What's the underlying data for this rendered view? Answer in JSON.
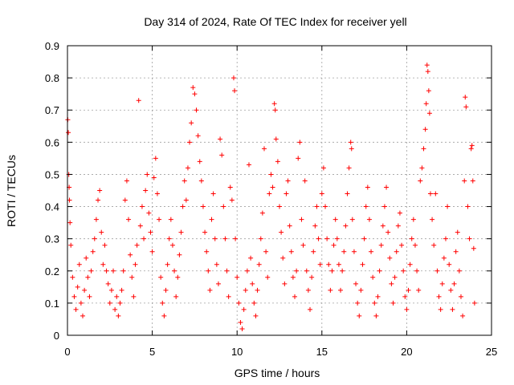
{
  "chart_data": {
    "type": "scatter",
    "title": "Day 314 of 2024, Rate Of TEC Index for receiver yell",
    "xlabel": "GPS time / hours",
    "ylabel": "ROTI / TECUs",
    "xlim": [
      0,
      25
    ],
    "ylim": [
      0,
      0.9
    ],
    "xticks": [
      0,
      5,
      10,
      15,
      20,
      25
    ],
    "yticks": [
      0,
      0.1,
      0.2,
      0.3,
      0.4,
      0.5,
      0.6,
      0.7,
      0.8,
      0.9
    ],
    "xtick_labels": [
      "0",
      "5",
      "10",
      "15",
      "20",
      "25"
    ],
    "ytick_labels": [
      "0",
      "0.1",
      "0.2",
      "0.3",
      "0.4",
      "0.5",
      "0.6",
      "0.7",
      "0.8",
      "0.9"
    ],
    "grid": true,
    "marker": "+",
    "marker_color": "#ff0000",
    "series": [
      {
        "name": "ROTI",
        "points": [
          [
            0.02,
            0.67
          ],
          [
            0.05,
            0.63
          ],
          [
            0.08,
            0.5
          ],
          [
            0.1,
            0.46
          ],
          [
            0.12,
            0.42
          ],
          [
            0.15,
            0.35
          ],
          [
            0.2,
            0.28
          ],
          [
            0.3,
            0.18
          ],
          [
            0.4,
            0.12
          ],
          [
            0.5,
            0.08
          ],
          [
            0.6,
            0.15
          ],
          [
            0.7,
            0.22
          ],
          [
            0.8,
            0.1
          ],
          [
            0.9,
            0.06
          ],
          [
            1.0,
            0.14
          ],
          [
            1.1,
            0.24
          ],
          [
            1.2,
            0.18
          ],
          [
            1.3,
            0.12
          ],
          [
            1.4,
            0.2
          ],
          [
            1.5,
            0.26
          ],
          [
            1.6,
            0.3
          ],
          [
            1.7,
            0.36
          ],
          [
            1.8,
            0.42
          ],
          [
            1.9,
            0.45
          ],
          [
            2.0,
            0.32
          ],
          [
            2.1,
            0.22
          ],
          [
            2.2,
            0.28
          ],
          [
            2.3,
            0.2
          ],
          [
            2.4,
            0.16
          ],
          [
            2.5,
            0.1
          ],
          [
            2.6,
            0.14
          ],
          [
            2.7,
            0.2
          ],
          [
            2.8,
            0.08
          ],
          [
            2.9,
            0.12
          ],
          [
            3.0,
            0.06
          ],
          [
            3.1,
            0.1
          ],
          [
            3.2,
            0.14
          ],
          [
            3.3,
            0.2
          ],
          [
            3.4,
            0.42
          ],
          [
            3.5,
            0.48
          ],
          [
            3.6,
            0.36
          ],
          [
            3.7,
            0.25
          ],
          [
            3.8,
            0.18
          ],
          [
            3.9,
            0.12
          ],
          [
            4.0,
            0.22
          ],
          [
            4.1,
            0.28
          ],
          [
            4.2,
            0.73
          ],
          [
            4.3,
            0.34
          ],
          [
            4.4,
            0.4
          ],
          [
            4.5,
            0.3
          ],
          [
            4.6,
            0.45
          ],
          [
            4.7,
            0.5
          ],
          [
            4.8,
            0.38
          ],
          [
            4.9,
            0.32
          ],
          [
            5.0,
            0.26
          ],
          [
            5.1,
            0.49
          ],
          [
            5.2,
            0.55
          ],
          [
            5.3,
            0.44
          ],
          [
            5.4,
            0.36
          ],
          [
            5.5,
            0.18
          ],
          [
            5.6,
            0.1
          ],
          [
            5.7,
            0.06
          ],
          [
            5.8,
            0.14
          ],
          [
            5.9,
            0.22
          ],
          [
            6.0,
            0.3
          ],
          [
            6.1,
            0.36
          ],
          [
            6.2,
            0.28
          ],
          [
            6.3,
            0.2
          ],
          [
            6.4,
            0.12
          ],
          [
            6.5,
            0.18
          ],
          [
            6.6,
            0.25
          ],
          [
            6.7,
            0.32
          ],
          [
            6.8,
            0.4
          ],
          [
            6.9,
            0.48
          ],
          [
            7.0,
            0.42
          ],
          [
            7.1,
            0.52
          ],
          [
            7.2,
            0.6
          ],
          [
            7.3,
            0.66
          ],
          [
            7.4,
            0.77
          ],
          [
            7.5,
            0.75
          ],
          [
            7.6,
            0.7
          ],
          [
            7.7,
            0.62
          ],
          [
            7.8,
            0.54
          ],
          [
            7.9,
            0.48
          ],
          [
            8.0,
            0.4
          ],
          [
            8.1,
            0.32
          ],
          [
            8.2,
            0.26
          ],
          [
            8.3,
            0.2
          ],
          [
            8.4,
            0.14
          ],
          [
            8.5,
            0.36
          ],
          [
            8.6,
            0.44
          ],
          [
            8.7,
            0.3
          ],
          [
            8.8,
            0.22
          ],
          [
            8.9,
            0.16
          ],
          [
            9.0,
            0.61
          ],
          [
            9.1,
            0.56
          ],
          [
            9.2,
            0.4
          ],
          [
            9.3,
            0.3
          ],
          [
            9.4,
            0.2
          ],
          [
            9.5,
            0.12
          ],
          [
            9.6,
            0.46
          ],
          [
            9.7,
            0.42
          ],
          [
            9.8,
            0.8
          ],
          [
            9.85,
            0.76
          ],
          [
            9.9,
            0.3
          ],
          [
            10.0,
            0.18
          ],
          [
            10.1,
            0.1
          ],
          [
            10.2,
            0.04
          ],
          [
            10.3,
            0.02
          ],
          [
            10.4,
            0.08
          ],
          [
            10.5,
            0.14
          ],
          [
            10.6,
            0.2
          ],
          [
            10.7,
            0.53
          ],
          [
            10.8,
            0.24
          ],
          [
            10.9,
            0.16
          ],
          [
            11.0,
            0.1
          ],
          [
            11.1,
            0.06
          ],
          [
            11.2,
            0.14
          ],
          [
            11.3,
            0.22
          ],
          [
            11.4,
            0.3
          ],
          [
            11.5,
            0.38
          ],
          [
            11.6,
            0.58
          ],
          [
            11.7,
            0.26
          ],
          [
            11.8,
            0.18
          ],
          [
            11.9,
            0.44
          ],
          [
            12.0,
            0.5
          ],
          [
            12.1,
            0.46
          ],
          [
            12.2,
            0.72
          ],
          [
            12.25,
            0.7
          ],
          [
            12.3,
            0.61
          ],
          [
            12.4,
            0.54
          ],
          [
            12.5,
            0.4
          ],
          [
            12.6,
            0.32
          ],
          [
            12.7,
            0.24
          ],
          [
            12.8,
            0.16
          ],
          [
            12.9,
            0.44
          ],
          [
            13.0,
            0.48
          ],
          [
            13.1,
            0.34
          ],
          [
            13.2,
            0.26
          ],
          [
            13.3,
            0.18
          ],
          [
            13.4,
            0.12
          ],
          [
            13.5,
            0.2
          ],
          [
            13.6,
            0.55
          ],
          [
            13.7,
            0.6
          ],
          [
            13.8,
            0.36
          ],
          [
            13.9,
            0.28
          ],
          [
            14.0,
            0.48
          ],
          [
            14.1,
            0.2
          ],
          [
            14.2,
            0.14
          ],
          [
            14.3,
            0.08
          ],
          [
            14.4,
            0.18
          ],
          [
            14.5,
            0.26
          ],
          [
            14.6,
            0.34
          ],
          [
            14.7,
            0.4
          ],
          [
            14.8,
            0.3
          ],
          [
            14.9,
            0.22
          ],
          [
            15.0,
            0.44
          ],
          [
            15.1,
            0.52
          ],
          [
            15.2,
            0.4
          ],
          [
            15.3,
            0.3
          ],
          [
            15.4,
            0.22
          ],
          [
            15.5,
            0.14
          ],
          [
            15.6,
            0.2
          ],
          [
            15.7,
            0.28
          ],
          [
            15.8,
            0.36
          ],
          [
            15.9,
            0.3
          ],
          [
            16.0,
            0.22
          ],
          [
            16.1,
            0.14
          ],
          [
            16.2,
            0.2
          ],
          [
            16.3,
            0.26
          ],
          [
            16.4,
            0.34
          ],
          [
            16.5,
            0.44
          ],
          [
            16.6,
            0.52
          ],
          [
            16.7,
            0.6
          ],
          [
            16.75,
            0.58
          ],
          [
            16.8,
            0.36
          ],
          [
            16.9,
            0.26
          ],
          [
            17.0,
            0.16
          ],
          [
            17.1,
            0.1
          ],
          [
            17.2,
            0.06
          ],
          [
            17.3,
            0.14
          ],
          [
            17.4,
            0.22
          ],
          [
            17.5,
            0.3
          ],
          [
            17.6,
            0.4
          ],
          [
            17.7,
            0.46
          ],
          [
            17.8,
            0.36
          ],
          [
            17.9,
            0.26
          ],
          [
            18.0,
            0.18
          ],
          [
            18.1,
            0.1
          ],
          [
            18.2,
            0.06
          ],
          [
            18.3,
            0.12
          ],
          [
            18.4,
            0.2
          ],
          [
            18.5,
            0.28
          ],
          [
            18.6,
            0.34
          ],
          [
            18.7,
            0.4
          ],
          [
            18.8,
            0.46
          ],
          [
            18.9,
            0.32
          ],
          [
            19.0,
            0.24
          ],
          [
            19.1,
            0.16
          ],
          [
            19.2,
            0.1
          ],
          [
            19.3,
            0.18
          ],
          [
            19.4,
            0.26
          ],
          [
            19.5,
            0.34
          ],
          [
            19.6,
            0.38
          ],
          [
            19.7,
            0.28
          ],
          [
            19.8,
            0.2
          ],
          [
            19.9,
            0.12
          ],
          [
            20.0,
            0.08
          ],
          [
            20.1,
            0.14
          ],
          [
            20.2,
            0.22
          ],
          [
            20.3,
            0.3
          ],
          [
            20.4,
            0.36
          ],
          [
            20.5,
            0.28
          ],
          [
            20.6,
            0.2
          ],
          [
            20.7,
            0.14
          ],
          [
            20.8,
            0.48
          ],
          [
            20.9,
            0.52
          ],
          [
            21.0,
            0.58
          ],
          [
            21.1,
            0.64
          ],
          [
            21.15,
            0.72
          ],
          [
            21.2,
            0.84
          ],
          [
            21.25,
            0.82
          ],
          [
            21.3,
            0.76
          ],
          [
            21.35,
            0.69
          ],
          [
            21.4,
            0.44
          ],
          [
            21.5,
            0.36
          ],
          [
            21.6,
            0.28
          ],
          [
            21.7,
            0.44
          ],
          [
            21.8,
            0.2
          ],
          [
            21.9,
            0.12
          ],
          [
            22.0,
            0.08
          ],
          [
            22.1,
            0.16
          ],
          [
            22.2,
            0.24
          ],
          [
            22.3,
            0.3
          ],
          [
            22.4,
            0.4
          ],
          [
            22.5,
            0.22
          ],
          [
            22.6,
            0.14
          ],
          [
            22.7,
            0.08
          ],
          [
            22.8,
            0.16
          ],
          [
            22.9,
            0.26
          ],
          [
            23.0,
            0.32
          ],
          [
            23.1,
            0.2
          ],
          [
            23.2,
            0.12
          ],
          [
            23.3,
            0.06
          ],
          [
            23.4,
            0.48
          ],
          [
            23.45,
            0.74
          ],
          [
            23.5,
            0.71
          ],
          [
            23.6,
            0.4
          ],
          [
            23.7,
            0.3
          ],
          [
            23.8,
            0.58
          ],
          [
            23.85,
            0.59
          ],
          [
            23.9,
            0.48
          ],
          [
            23.95,
            0.27
          ],
          [
            24.0,
            0.1
          ]
        ]
      }
    ]
  }
}
